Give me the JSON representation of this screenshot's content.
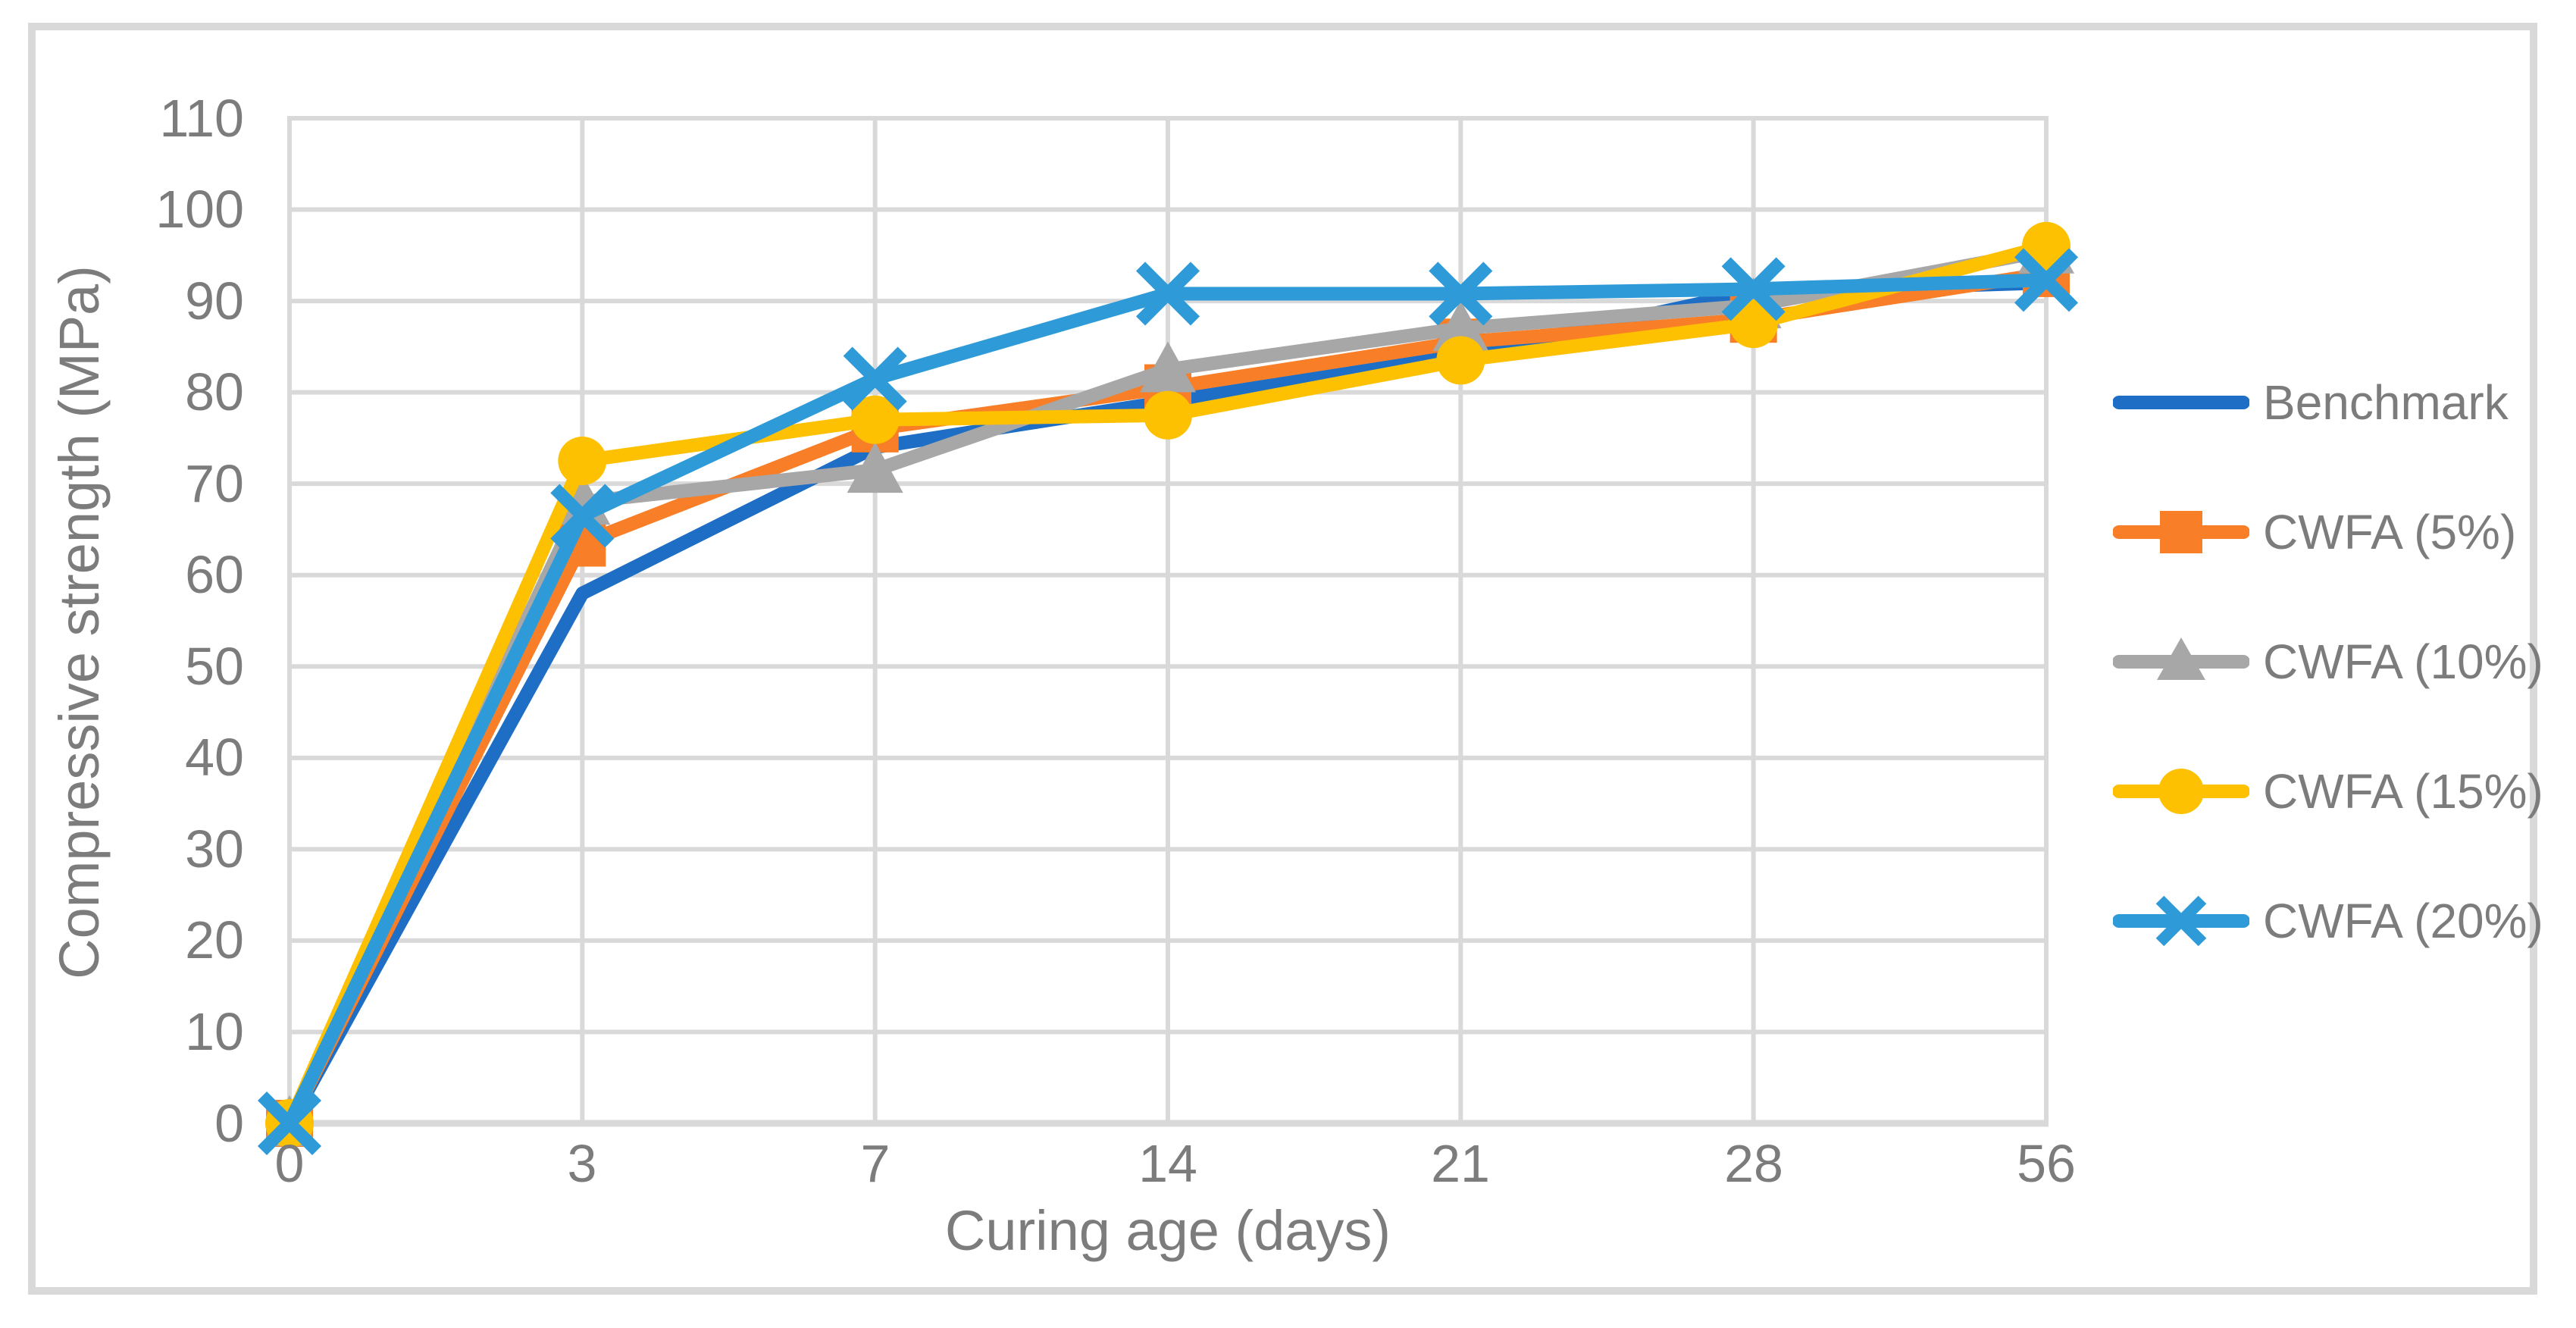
{
  "chart_data": {
    "type": "line",
    "title": "",
    "xlabel": "Curing age (days)",
    "ylabel": "Compressive strength (MPa)",
    "categories": [
      0,
      3,
      7,
      14,
      21,
      28,
      56
    ],
    "y_ticks": [
      110,
      100,
      90,
      80,
      70,
      60,
      50,
      40,
      30,
      20,
      10,
      0
    ],
    "ylim": [
      0,
      110
    ],
    "xlim_type": "categorical",
    "grid": true,
    "legend_position": "right",
    "series": [
      {
        "name": "Benchmark",
        "color": "#1e6ec5",
        "marker": "none",
        "values": [
          0,
          58,
          74,
          79,
          84,
          91,
          92
        ]
      },
      {
        "name": "CWFA (5%)",
        "color": "#f87e27",
        "marker": "square",
        "values": [
          0,
          63.5,
          76,
          80.5,
          85.5,
          88,
          93
        ]
      },
      {
        "name": "CWFA (10%)",
        "color": "#a7a7a7",
        "marker": "triangle",
        "values": [
          0,
          68,
          71.5,
          82.5,
          87,
          89.5,
          95.5
        ]
      },
      {
        "name": "CWFA (15%)",
        "color": "#fec102",
        "marker": "circle",
        "values": [
          0,
          72.5,
          77,
          77.5,
          83.5,
          87.5,
          96
        ]
      },
      {
        "name": "CWFA (20%)",
        "color": "#2e9bd8",
        "marker": "x",
        "values": [
          0,
          66.5,
          81.5,
          90.8,
          90.8,
          91.3,
          92.3
        ]
      }
    ],
    "colors": {
      "grid": "#d9d9d9",
      "axis": "#d9d9d9",
      "frame": "#d9d9d9",
      "text": "#7c7c7c",
      "background": "#ffffff"
    }
  }
}
